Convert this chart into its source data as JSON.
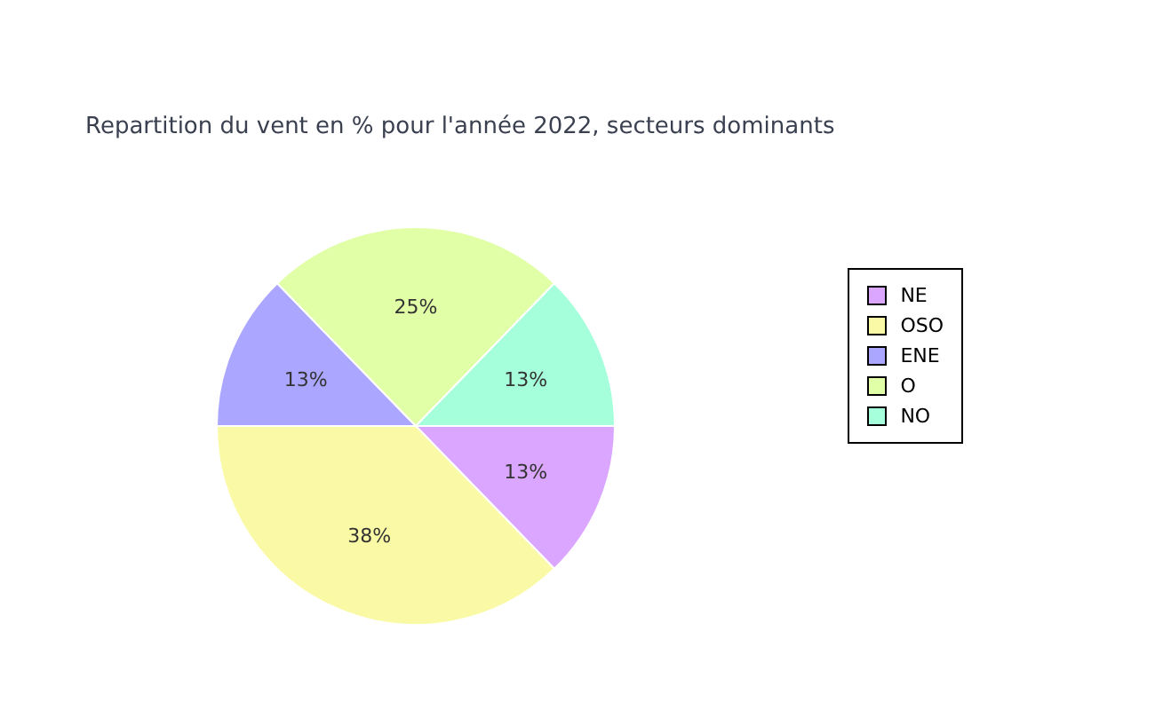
{
  "chart_data": {
    "type": "pie",
    "title": "Repartition du vent en % pour l'année 2022, secteurs dominants",
    "categories": [
      "NE",
      "OSO",
      "ENE",
      "O",
      "NO"
    ],
    "values": [
      13,
      38,
      13,
      25,
      13
    ],
    "value_labels": [
      "13%",
      "38%",
      "13%",
      "25%",
      "13%"
    ],
    "colors": [
      "#dba6ff",
      "#fafaa6",
      "#aba6ff",
      "#e1ffa6",
      "#a6ffdb"
    ],
    "legend": "right"
  }
}
